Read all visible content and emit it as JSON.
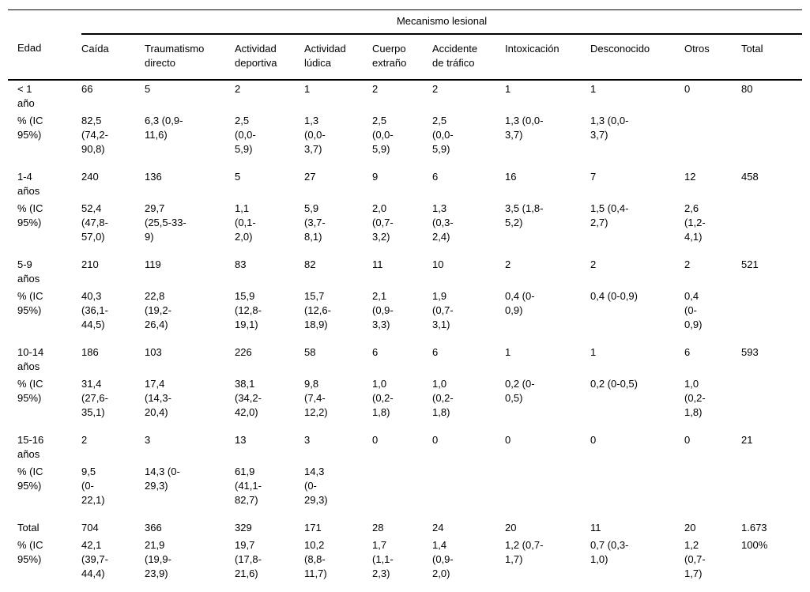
{
  "table": {
    "spanner": "Mecanismo lesional",
    "columns": [
      "Edad",
      "Caída",
      "Traumatismo\ndirecto",
      "Actividad\ndeportiva",
      "Actividad\nlúdica",
      "Cuerpo\nextraño",
      "Accidente\nde tráfico",
      "Intoxicación",
      "Desconocido",
      "Otros",
      "Total"
    ],
    "rows": [
      {
        "label": "< 1\naño",
        "cells": [
          "66",
          "5",
          "2",
          "1",
          "2",
          "2",
          "1",
          "1",
          "0",
          "80"
        ]
      },
      {
        "label": "% (IC\n95%)",
        "cells": [
          "82,5\n(74,2-\n90,8)",
          "6,3 (0,9-\n11,6)",
          "2,5\n(0,0-\n5,9)",
          "1,3\n(0,0-\n3,7)",
          "2,5\n(0,0-\n5,9)",
          "2,5\n(0,0-\n5,9)",
          "1,3 (0,0-\n3,7)",
          "1,3 (0,0-\n3,7)",
          "",
          ""
        ]
      },
      {
        "label": "1-4\naños",
        "cells": [
          "240",
          "136",
          "5",
          "27",
          "9",
          "6",
          "16",
          "7",
          "12",
          "458"
        ]
      },
      {
        "label": "% (IC\n95%)",
        "cells": [
          "52,4\n(47,8-\n57,0)",
          "29,7\n(25,5-33-\n9)",
          "1,1\n(0,1-\n2,0)",
          "5,9\n(3,7-\n8,1)",
          "2,0\n(0,7-\n3,2)",
          "1,3\n(0,3-\n2,4)",
          "3,5 (1,8-\n5,2)",
          "1,5 (0,4-\n2,7)",
          "2,6\n(1,2-\n4,1)",
          ""
        ]
      },
      {
        "label": "5-9\naños",
        "cells": [
          "210",
          "119",
          "83",
          "82",
          "11",
          "10",
          "2",
          "2",
          "2",
          "521"
        ]
      },
      {
        "label": "% (IC\n95%)",
        "cells": [
          "40,3\n(36,1-\n44,5)",
          "22,8\n(19,2-\n26,4)",
          "15,9\n(12,8-\n19,1)",
          "15,7\n(12,6-\n18,9)",
          "2,1\n(0,9-\n3,3)",
          "1,9\n(0,7-\n3,1)",
          "0,4 (0-\n0,9)",
          "0,4 (0-0,9)",
          "0,4\n(0-\n0,9)",
          ""
        ]
      },
      {
        "label": "10-14\naños",
        "cells": [
          "186",
          "103",
          "226",
          "58",
          "6",
          "6",
          "1",
          "1",
          "6",
          "593"
        ]
      },
      {
        "label": "% (IC\n95%)",
        "cells": [
          "31,4\n(27,6-\n35,1)",
          "17,4\n(14,3-\n20,4)",
          "38,1\n(34,2-\n42,0)",
          "9,8\n(7,4-\n12,2)",
          "1,0\n(0,2-\n1,8)",
          "1,0\n(0,2-\n1,8)",
          "0,2 (0-\n0,5)",
          "0,2 (0-0,5)",
          "1,0\n(0,2-\n1,8)",
          ""
        ]
      },
      {
        "label": "15-16\naños",
        "cells": [
          "2",
          "3",
          "13",
          "3",
          "0",
          "0",
          "0",
          "0",
          "0",
          "21"
        ]
      },
      {
        "label": "% (IC\n95%)",
        "cells": [
          "9,5\n(0-\n22,1)",
          "14,3 (0-\n29,3)",
          "61,9\n(41,1-\n82,7)",
          "14,3\n(0-\n29,3)",
          "",
          "",
          "",
          "",
          "",
          ""
        ]
      },
      {
        "label": "Total",
        "cells": [
          "704",
          "366",
          "329",
          "171",
          "28",
          "24",
          "20",
          "11",
          "20",
          "1.673"
        ]
      },
      {
        "label": "% (IC\n95%)",
        "cells": [
          "42,1\n(39,7-\n44,4)",
          "21,9\n(19,9-\n23,9)",
          "19,7\n(17,8-\n21,6)",
          "10,2\n(8,8-\n11,7)",
          "1,7\n(1,1-\n2,3)",
          "1,4\n(0,9-\n2,0)",
          "1,2 (0,7-\n1,7)",
          "0,7 (0,3-\n1,0)",
          "1,2\n(0,7-\n1,7)",
          "100%"
        ]
      }
    ]
  }
}
